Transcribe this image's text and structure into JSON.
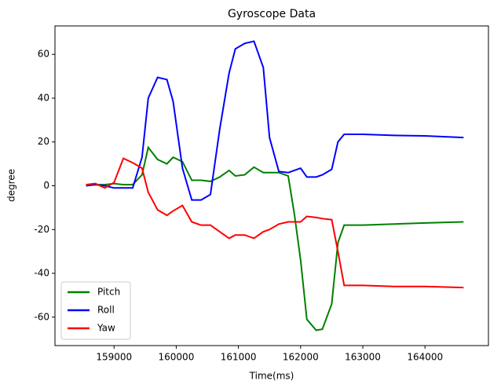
{
  "chart_data": {
    "type": "line",
    "title": "Gyroscope Data",
    "x_label": "Time(ms)",
    "y_label": "degree",
    "x": [
      158550,
      158700,
      158850,
      159000,
      159150,
      159300,
      159450,
      159550,
      159700,
      159850,
      159950,
      160100,
      160250,
      160400,
      160550,
      160700,
      160850,
      160950,
      161100,
      161250,
      161400,
      161500,
      161650,
      161800,
      161900,
      162000,
      162100,
      162250,
      162350,
      162500,
      162600,
      162700,
      163000,
      163500,
      164000,
      164620
    ],
    "series": [
      {
        "name": "Pitch",
        "color": "#008000",
        "values": [
          0.5,
          0.5,
          0.5,
          1,
          0.5,
          0.5,
          5,
          17.5,
          12,
          10,
          13,
          11,
          2.5,
          2.5,
          2,
          4,
          7,
          4.5,
          5,
          8.5,
          6,
          6,
          6,
          4.5,
          -13,
          -34,
          -61,
          -66,
          -65.5,
          -54,
          -26,
          -18,
          -18,
          -17.5,
          -17,
          -16.5
        ]
      },
      {
        "name": "Roll",
        "color": "#0000ff",
        "values": [
          0,
          0.5,
          0,
          -1,
          -1,
          -1,
          13,
          40,
          49.5,
          48.5,
          38.5,
          8,
          -6.5,
          -6.5,
          -4,
          26,
          51.5,
          62.5,
          65,
          66,
          54,
          22,
          6.5,
          6,
          7,
          8,
          4,
          4,
          5,
          7.5,
          20,
          23.5,
          23.5,
          23,
          22.8,
          22
        ]
      },
      {
        "name": "Yaw",
        "color": "#ff0000",
        "values": [
          0.5,
          1,
          -1,
          1.5,
          12.5,
          10.5,
          8,
          -3,
          -11,
          -13.5,
          -11.5,
          -9,
          -16.5,
          -18,
          -18,
          -21,
          -24,
          -22.5,
          -22.5,
          -24,
          -21,
          -20,
          -17.5,
          -16.5,
          -16.5,
          -16.5,
          -14,
          -14.5,
          -15,
          -15.5,
          -30,
          -45.5,
          -45.5,
          -46,
          -46,
          -46.5
        ]
      }
    ],
    "xlim": [
      158050,
      165020
    ],
    "ylim": [
      -73,
      73
    ],
    "xticks": [
      159000,
      160000,
      161000,
      162000,
      163000,
      164000
    ],
    "yticks": [
      -60,
      -40,
      -20,
      0,
      20,
      40,
      60
    ],
    "grid": false,
    "legend": "lower left"
  }
}
